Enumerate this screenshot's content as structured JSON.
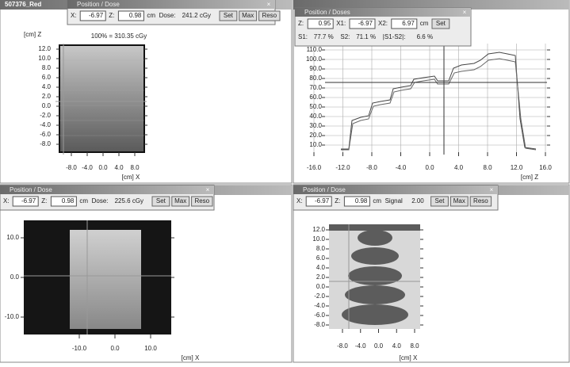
{
  "panels": [
    {
      "window_title": "507376_Red",
      "dialog": {
        "title": "Position / Dose",
        "rows": [
          [
            {
              "label": "X:",
              "value": "-6.97"
            },
            {
              "label": "Z:",
              "value": "0.98"
            },
            {
              "text": "cm"
            },
            {
              "text": "Dose:"
            },
            {
              "text": "241.2 cGy"
            },
            {
              "button": "Set"
            },
            {
              "button": "Max"
            },
            {
              "button": "Reso"
            }
          ]
        ]
      },
      "plot": {
        "y_label": "[cm] Z",
        "note": "100% = 310.35 cGy",
        "yticks": [
          "12.0",
          "10.0",
          "8.0",
          "6.0",
          "4.0",
          "2.0",
          "0.0",
          "-2.0",
          "-4.0",
          "-6.0",
          "-8.0"
        ],
        "xticks": [
          "-8.0",
          "-4.0",
          "0.0",
          "4.0",
          "8.0"
        ],
        "x_label": "[cm] X"
      }
    },
    {
      "dialog": {
        "title": "Position / Doses",
        "rows": [
          [
            {
              "label": "Z:",
              "value": "0.95"
            },
            {
              "label": "X1:",
              "value": "-6.97"
            },
            {
              "label": "X2:",
              "value": "6.97"
            },
            {
              "text": "cm"
            },
            {
              "button": "Set"
            }
          ],
          [
            {
              "text": "S1:"
            },
            {
              "text": "77.7 %"
            },
            {
              "text": "S2:"
            },
            {
              "text": "71.1 %"
            },
            {
              "text": "|S1-S2|:"
            },
            {
              "text": "6.6 %"
            }
          ]
        ]
      },
      "plot": {
        "yticks": [
          "110.0",
          "100.0",
          "90.0",
          "80.0",
          "70.0",
          "60.0",
          "50.0",
          "40.0",
          "30.0",
          "20.0",
          "10.0"
        ],
        "xticks": [
          "-16.0",
          "-12.0",
          "-8.0",
          "-4.0",
          "0.0",
          "4.0",
          "8.0",
          "12.0",
          "16.0"
        ],
        "x_label": "[cm] Z"
      }
    },
    {
      "dialog": {
        "title": "Position / Dose",
        "rows": [
          [
            {
              "label": "X:",
              "value": "-6.97"
            },
            {
              "label": "Z:",
              "value": "0.98"
            },
            {
              "text": "cm"
            },
            {
              "text": "Dose:"
            },
            {
              "text": "225.6 cGy"
            },
            {
              "button": "Set"
            },
            {
              "button": "Max"
            },
            {
              "button": "Reso"
            }
          ]
        ]
      },
      "plot": {
        "yticks": [
          "10.0",
          "0.0",
          "-10.0"
        ],
        "xticks": [
          "-10.0",
          "0.0",
          "10.0"
        ],
        "x_label": "[cm] X"
      }
    },
    {
      "dialog": {
        "title": "Position / Dose",
        "rows": [
          [
            {
              "label": "X:",
              "value": "-6.97"
            },
            {
              "label": "Z:",
              "value": "0.98"
            },
            {
              "text": "cm"
            },
            {
              "text": "Signal"
            },
            {
              "text": "2.00"
            },
            {
              "button": "Set"
            },
            {
              "button": "Max"
            },
            {
              "button": "Reso"
            }
          ]
        ]
      },
      "plot": {
        "yticks": [
          "12.0",
          "10.0",
          "8.0",
          "6.0",
          "4.0",
          "2.0",
          "0.0",
          "-2.0",
          "-4.0",
          "-6.0",
          "-8.0"
        ],
        "xticks": [
          "-8.0",
          "-4.0",
          "0.0",
          "4.0",
          "8.0"
        ],
        "x_label": "[cm] X"
      }
    }
  ]
}
